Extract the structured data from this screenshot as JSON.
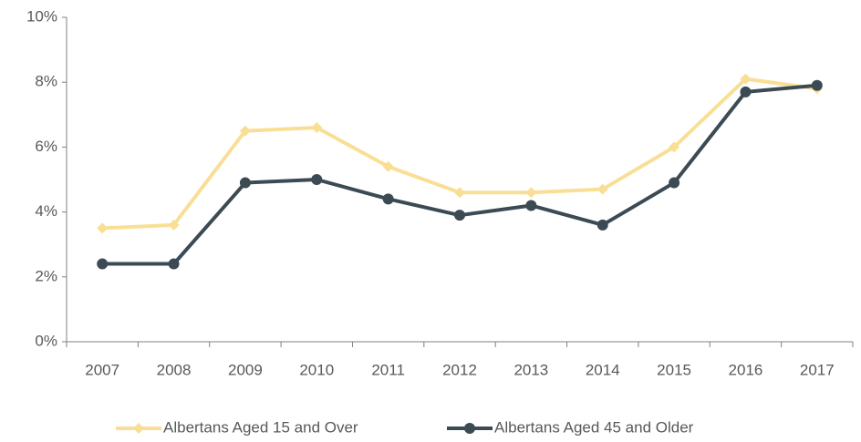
{
  "chart_data": {
    "type": "line",
    "categories": [
      "2007",
      "2008",
      "2009",
      "2010",
      "2011",
      "2012",
      "2013",
      "2014",
      "2015",
      "2016",
      "2017"
    ],
    "series": [
      {
        "name": "Albertans Aged 15 and Over",
        "color": "#f9df95",
        "marker": "diamond",
        "values": [
          3.5,
          3.6,
          6.5,
          6.6,
          5.4,
          4.6,
          4.6,
          4.7,
          6.0,
          8.1,
          7.8
        ]
      },
      {
        "name": "Albertans Aged 45 and Older",
        "color": "#3c4a54",
        "marker": "circle",
        "values": [
          2.4,
          2.4,
          4.9,
          5.0,
          4.4,
          3.9,
          4.2,
          3.6,
          4.9,
          7.7,
          7.9
        ]
      }
    ],
    "ylim": [
      0,
      10
    ],
    "yticks": [
      {
        "value": 0,
        "label": "0%"
      },
      {
        "value": 2,
        "label": "2%"
      },
      {
        "value": 4,
        "label": "4%"
      },
      {
        "value": 6,
        "label": "6%"
      },
      {
        "value": 8,
        "label": "8%"
      },
      {
        "value": 10,
        "label": "10%"
      }
    ],
    "grid": false,
    "legend": "bottom"
  }
}
